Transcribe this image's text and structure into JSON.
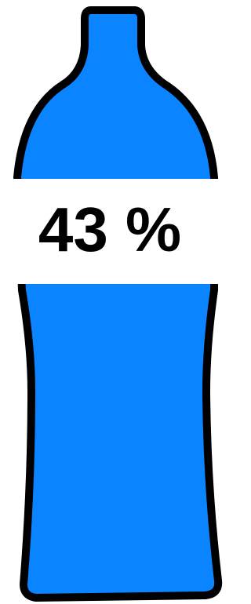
{
  "gauge": {
    "label": "43 %"
  }
}
